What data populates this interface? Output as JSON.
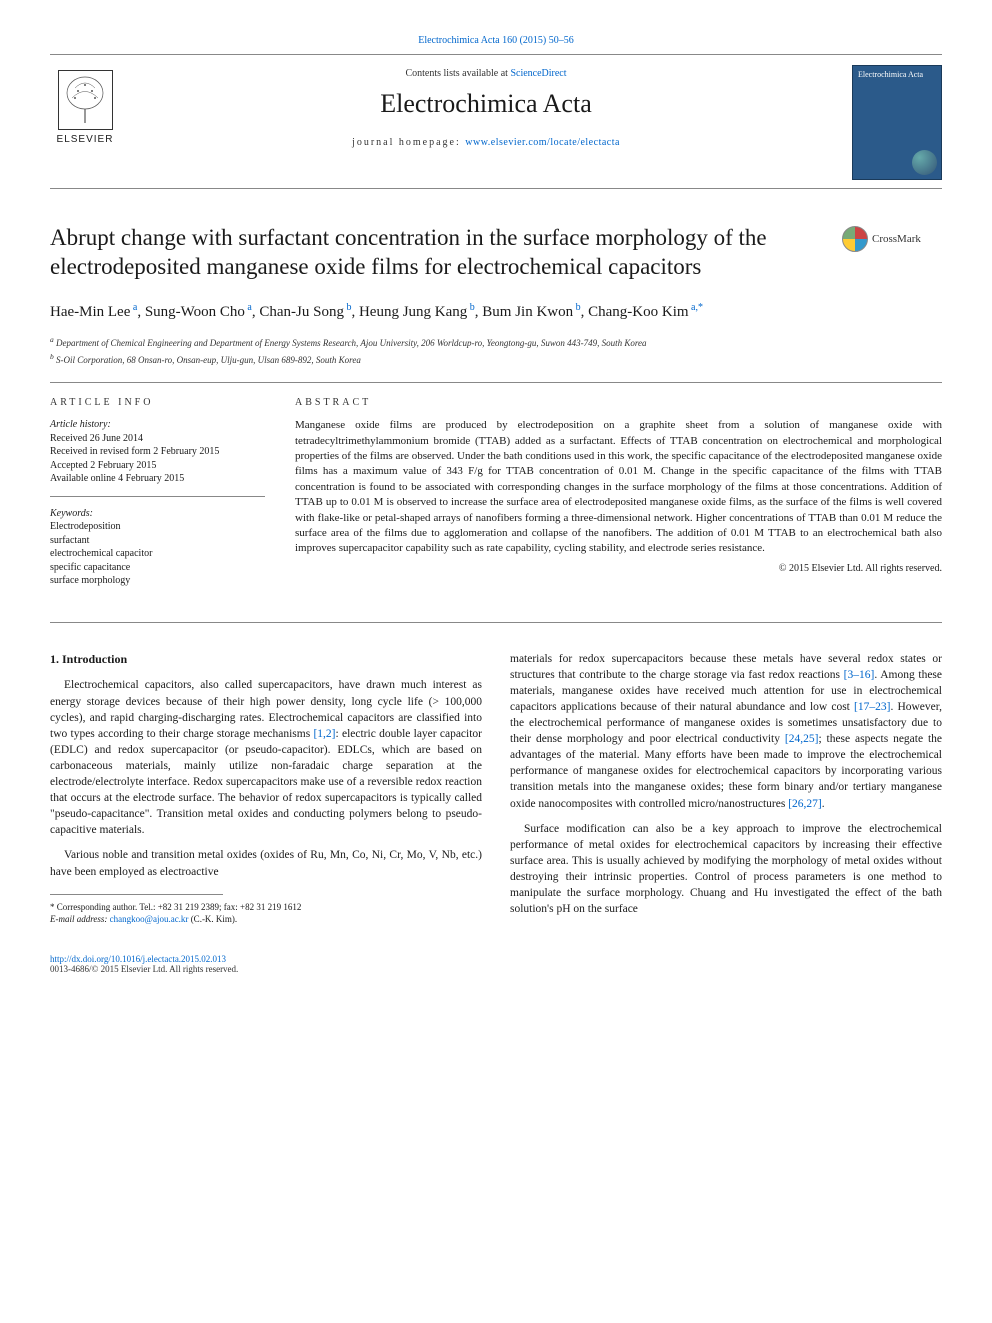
{
  "header": {
    "top_link_text": "Electrochimica Acta 160 (2015) 50–56",
    "top_link_color": "#0066cc",
    "contents_prefix": "Contents lists available at ",
    "contents_link": "ScienceDirect",
    "journal_name": "Electrochimica Acta",
    "homepage_label": "journal homepage: ",
    "homepage_url": "www.elsevier.com/locate/electacta",
    "publisher": "ELSEVIER",
    "cover_label": "Electrochimica Acta"
  },
  "crossmark": {
    "label": "CrossMark"
  },
  "title": "Abrupt change with surfactant concentration in the surface morphology of the electrodeposited manganese oxide films for electrochemical capacitors",
  "authors_html": "Hae-Min Lee<sup> a</sup>, Sung-Woon Cho<sup> a</sup>, Chan-Ju Song<sup> b</sup>, Heung Jung Kang<sup> b</sup>, Bum Jin Kwon<sup> b</sup>, Chang-Koo Kim<sup> a,*</sup>",
  "affiliations": [
    "a Department of Chemical Engineering and Department of Energy Systems Research, Ajou University, 206 Worldcup-ro, Yeongtong-gu, Suwon 443-749, South Korea",
    "b S-Oil Corporation, 68 Onsan-ro, Onsan-eup, Ulju-gun, Ulsan 689-892, South Korea"
  ],
  "article_info": {
    "heading": "ARTICLE INFO",
    "history_label": "Article history:",
    "history": [
      "Received 26 June 2014",
      "Received in revised form 2 February 2015",
      "Accepted 2 February 2015",
      "Available online 4 February 2015"
    ],
    "keywords_label": "Keywords:",
    "keywords": [
      "Electrodeposition",
      "surfactant",
      "electrochemical capacitor",
      "specific capacitance",
      "surface morphology"
    ]
  },
  "abstract": {
    "heading": "ABSTRACT",
    "text": "Manganese oxide films are produced by electrodeposition on a graphite sheet from a solution of manganese oxide with tetradecyltrimethylammonium bromide (TTAB) added as a surfactant. Effects of TTAB concentration on electrochemical and morphological properties of the films are observed. Under the bath conditions used in this work, the specific capacitance of the electrodeposited manganese oxide films has a maximum value of 343 F/g for TTAB concentration of 0.01 M. Change in the specific capacitance of the films with TTAB concentration is found to be associated with corresponding changes in the surface morphology of the films at those concentrations. Addition of TTAB up to 0.01 M is observed to increase the surface area of electrodeposited manganese oxide films, as the surface of the films is well covered with flake-like or petal-shaped arrays of nanofibers forming a three-dimensional network. Higher concentrations of TTAB than 0.01 M reduce the surface area of the films due to agglomeration and collapse of the nanofibers. The addition of 0.01 M TTAB to an electrochemical bath also improves supercapacitor capability such as rate capability, cycling stability, and electrode series resistance.",
    "copyright": "© 2015 Elsevier Ltd. All rights reserved."
  },
  "body": {
    "section_heading": "1. Introduction",
    "left_paragraphs": [
      "Electrochemical capacitors, also called supercapacitors, have drawn much interest as energy storage devices because of their high power density, long cycle life (> 100,000 cycles), and rapid charging-discharging rates. Electrochemical capacitors are classified into two types according to their charge storage mechanisms [1,2]: electric double layer capacitor (EDLC) and redox supercapacitor (or pseudo-capacitor). EDLCs, which are based on carbonaceous materials, mainly utilize non-faradaic charge separation at the electrode/electrolyte interface. Redox supercapacitors make use of a reversible redox reaction that occurs at the electrode surface. The behavior of redox supercapacitors is typically called \"pseudo-capacitance\". Transition metal oxides and conducting polymers belong to pseudo-capacitive materials.",
      "Various noble and transition metal oxides (oxides of Ru, Mn, Co, Ni, Cr, Mo, V, Nb, etc.) have been employed as electroactive"
    ],
    "right_paragraphs": [
      "materials for redox supercapacitors because these metals have several redox states or structures that contribute to the charge storage via fast redox reactions [3–16]. Among these materials, manganese oxides have received much attention for use in electrochemical capacitors applications because of their natural abundance and low cost [17–23]. However, the electrochemical performance of manganese oxides is sometimes unsatisfactory due to their dense morphology and poor electrical conductivity [24,25]; these aspects negate the advantages of the material. Many efforts have been made to improve the electrochemical performance of manganese oxides for electrochemical capacitors by incorporating various transition metals into the manganese oxides; these form binary and/or tertiary manganese oxide nanocomposites with controlled micro/nanostructures [26,27].",
      "Surface modification can also be a key approach to improve the electrochemical performance of metal oxides for electrochemical capacitors by increasing their effective surface area. This is usually achieved by modifying the morphology of metal oxides without destroying their intrinsic properties. Control of process parameters is one method to manipulate the surface morphology. Chuang and Hu investigated the effect of the bath solution's pH on the surface"
    ],
    "refs_left": [
      "[1,2]"
    ],
    "refs_right": [
      "[3–16]",
      "[17–23]",
      "[24,25]",
      "[26,27]"
    ]
  },
  "footnote": {
    "marker": "*",
    "text": "Corresponding author. Tel.: +82 31 219 2389; fax: +82 31 219 1612",
    "email_label": "E-mail address:",
    "email": "changkoo@ajou.ac.kr",
    "email_suffix": "(C.-K. Kim)."
  },
  "footer": {
    "doi": "http://dx.doi.org/10.1016/j.electacta.2015.02.013",
    "issn_line": "0013-4686/© 2015 Elsevier Ltd. All rights reserved."
  },
  "colors": {
    "link": "#0066cc",
    "text": "#1a1a1a",
    "rule": "#888888",
    "cover_bg": "#2b5a8a"
  }
}
